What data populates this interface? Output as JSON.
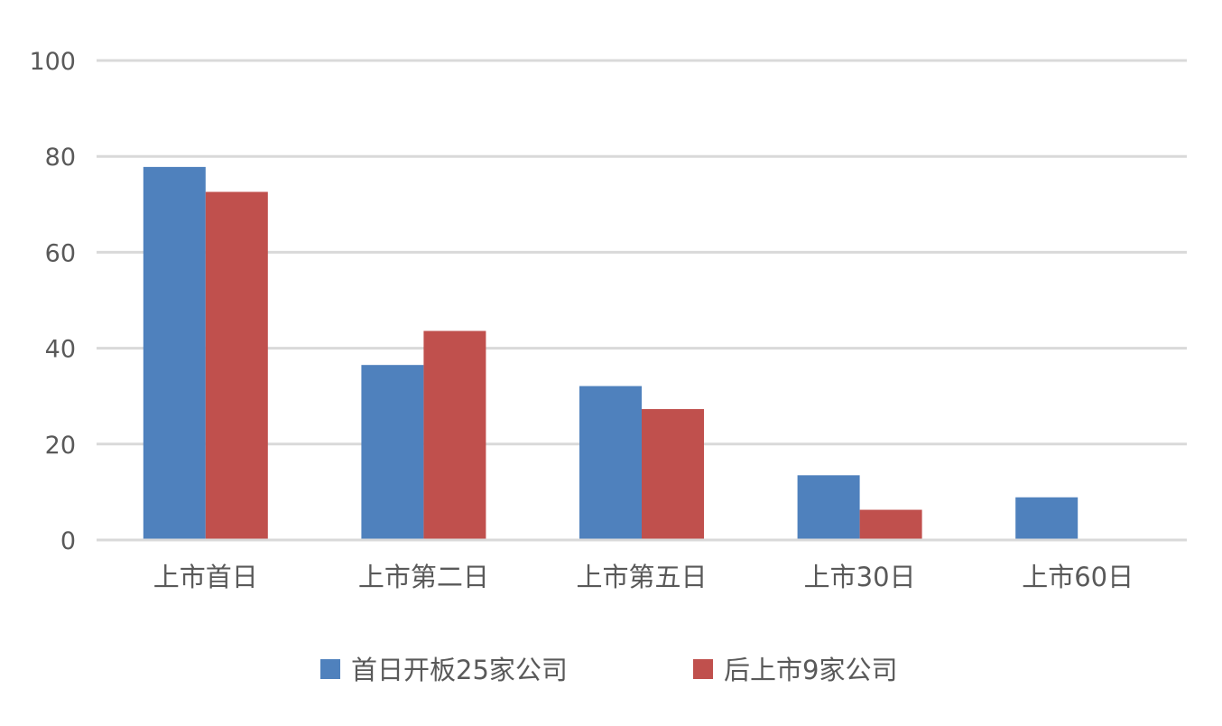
{
  "chart_data": {
    "type": "bar",
    "title": "",
    "xlabel": "",
    "ylabel": "",
    "categories": [
      "上市首日",
      "上市第二日",
      "上市第五日",
      "上市30日",
      "上市60日"
    ],
    "series": [
      {
        "name": "首日开板25家公司",
        "color": "#4f81bd",
        "values": [
          77.8,
          36.5,
          32.1,
          13.5,
          8.9
        ]
      },
      {
        "name": "后上市9家公司",
        "color": "#c0504d",
        "values": [
          72.6,
          43.6,
          27.3,
          6.3,
          null
        ]
      }
    ],
    "ylim": [
      0,
      100
    ],
    "yticks": [
      0,
      20,
      40,
      60,
      80,
      100
    ],
    "grid": true,
    "legend": "bottom"
  }
}
